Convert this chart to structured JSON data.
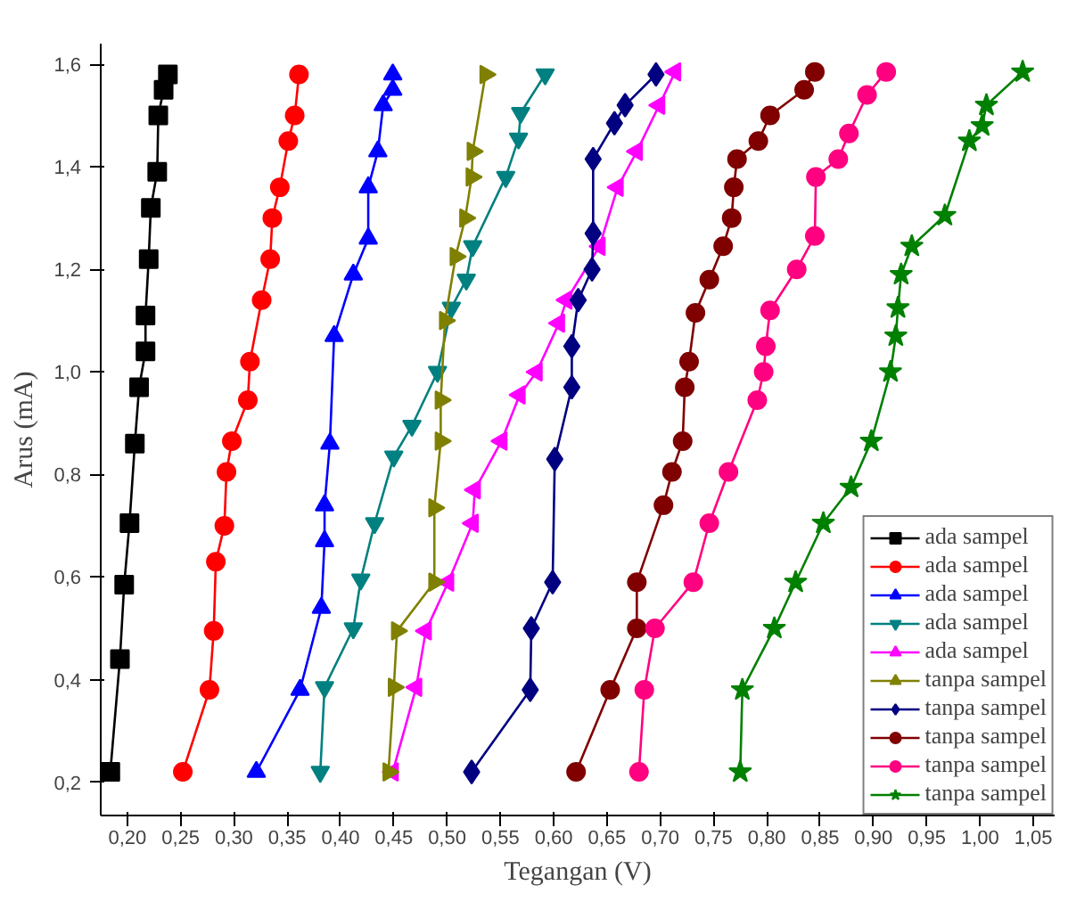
{
  "chart_data": {
    "type": "line",
    "xlabel": "Tegangan (V)",
    "ylabel": "Arus (mA)",
    "xlim": [
      0.175,
      1.07
    ],
    "ylim": [
      0.135,
      1.64
    ],
    "xticks": [
      {
        "value": 0.2,
        "label": "0,20"
      },
      {
        "value": 0.25,
        "label": "0,25"
      },
      {
        "value": 0.3,
        "label": "0,30"
      },
      {
        "value": 0.35,
        "label": "0,35"
      },
      {
        "value": 0.4,
        "label": "0,40"
      },
      {
        "value": 0.45,
        "label": "0,45"
      },
      {
        "value": 0.5,
        "label": "0,50"
      },
      {
        "value": 0.55,
        "label": "0,55"
      },
      {
        "value": 0.6,
        "label": "0,60"
      },
      {
        "value": 0.65,
        "label": "0,65"
      },
      {
        "value": 0.7,
        "label": "0,70"
      },
      {
        "value": 0.75,
        "label": "0,75"
      },
      {
        "value": 0.8,
        "label": "0,80"
      },
      {
        "value": 0.85,
        "label": "0,85"
      },
      {
        "value": 0.9,
        "label": "0,90"
      },
      {
        "value": 0.95,
        "label": "0,95"
      },
      {
        "value": 1.0,
        "label": "1,00"
      },
      {
        "value": 1.05,
        "label": "1,05"
      }
    ],
    "yticks": [
      {
        "value": 0.2,
        "label": "0,2"
      },
      {
        "value": 0.4,
        "label": "0,4"
      },
      {
        "value": 0.6,
        "label": "0,6"
      },
      {
        "value": 0.8,
        "label": "0,8"
      },
      {
        "value": 1.0,
        "label": "1,0"
      },
      {
        "value": 1.2,
        "label": "1,2"
      },
      {
        "value": 1.4,
        "label": "1,4"
      },
      {
        "value": 1.6,
        "label": "1,6"
      }
    ],
    "grid": false,
    "legend": "bottom right",
    "line_style": "solid",
    "series": [
      {
        "name": "ada sampel",
        "color": "#000000",
        "marker": "square",
        "x": [
          0.184,
          0.193,
          0.197,
          0.202,
          0.207,
          0.211,
          0.217,
          0.217,
          0.22,
          0.222,
          0.228,
          0.229,
          0.234,
          0.238
        ],
        "values": [
          0.22,
          0.44,
          0.585,
          0.705,
          0.86,
          0.97,
          1.04,
          1.11,
          1.22,
          1.32,
          1.39,
          1.5,
          1.55,
          1.58
        ]
      },
      {
        "name": "ada sampel",
        "color": "#ff0000",
        "marker": "circle",
        "x": [
          0.252,
          0.277,
          0.281,
          0.283,
          0.291,
          0.293,
          0.298,
          0.313,
          0.315,
          0.326,
          0.334,
          0.336,
          0.343,
          0.351,
          0.357,
          0.361
        ],
        "values": [
          0.22,
          0.38,
          0.495,
          0.63,
          0.7,
          0.805,
          0.865,
          0.945,
          1.02,
          1.14,
          1.22,
          1.3,
          1.36,
          1.45,
          1.5,
          1.58
        ]
      },
      {
        "name": "ada sampel",
        "color": "#0000ff",
        "marker": "triangle",
        "x": [
          0.321,
          0.362,
          0.382,
          0.385,
          0.385,
          0.39,
          0.394,
          0.412,
          0.426,
          0.426,
          0.435,
          0.44,
          0.449,
          0.449
        ],
        "values": [
          0.22,
          0.38,
          0.54,
          0.67,
          0.74,
          0.86,
          1.07,
          1.19,
          1.26,
          1.36,
          1.43,
          1.52,
          1.55,
          1.58
        ]
      },
      {
        "name": "ada sampel",
        "color": "#008080",
        "marker": "triangle-down",
        "x": [
          0.381,
          0.385,
          0.412,
          0.419,
          0.432,
          0.45,
          0.467,
          0.491,
          0.504,
          0.518,
          0.524,
          0.555,
          0.567,
          0.569,
          0.592
        ],
        "values": [
          0.22,
          0.385,
          0.5,
          0.595,
          0.705,
          0.835,
          0.895,
          1.0,
          1.125,
          1.18,
          1.245,
          1.38,
          1.455,
          1.505,
          1.58
        ]
      },
      {
        "name": "ada sampel",
        "color": "#ff00ff",
        "marker": "triangle-left",
        "x": [
          0.449,
          0.471,
          0.48,
          0.501,
          0.524,
          0.526,
          0.551,
          0.568,
          0.584,
          0.605,
          0.612,
          0.643,
          0.66,
          0.678,
          0.699,
          0.714
        ],
        "values": [
          0.22,
          0.385,
          0.495,
          0.59,
          0.705,
          0.77,
          0.865,
          0.955,
          1.0,
          1.095,
          1.14,
          1.245,
          1.36,
          1.43,
          1.52,
          1.585
        ]
      },
      {
        "name": "tanpa sampel",
        "color": "#808000",
        "marker": "triangle-right",
        "x": [
          0.445,
          0.45,
          0.453,
          0.488,
          0.488,
          0.494,
          0.494,
          0.498,
          0.508,
          0.517,
          0.523,
          0.524,
          0.536
        ],
        "values": [
          0.22,
          0.385,
          0.495,
          0.59,
          0.735,
          0.865,
          0.945,
          1.1,
          1.225,
          1.3,
          1.38,
          1.43,
          1.58
        ]
      },
      {
        "name": "tanpa sampel",
        "color": "#000080",
        "marker": "diamond",
        "x": [
          0.523,
          0.578,
          0.579,
          0.599,
          0.601,
          0.617,
          0.617,
          0.623,
          0.636,
          0.637,
          0.637,
          0.657,
          0.667,
          0.696
        ],
        "values": [
          0.22,
          0.38,
          0.5,
          0.59,
          0.83,
          0.97,
          1.05,
          1.14,
          1.2,
          1.27,
          1.415,
          1.485,
          1.52,
          1.58
        ]
      },
      {
        "name": "tanpa sampel",
        "color": "#800000",
        "marker": "circle",
        "x": [
          0.621,
          0.653,
          0.678,
          0.678,
          0.703,
          0.711,
          0.721,
          0.723,
          0.727,
          0.733,
          0.746,
          0.759,
          0.767,
          0.769,
          0.772,
          0.792,
          0.803,
          0.835,
          0.845
        ],
        "values": [
          0.22,
          0.38,
          0.5,
          0.59,
          0.74,
          0.805,
          0.865,
          0.97,
          1.02,
          1.115,
          1.18,
          1.245,
          1.3,
          1.36,
          1.415,
          1.45,
          1.5,
          1.55,
          1.585
        ]
      },
      {
        "name": "tanpa sampel",
        "color": "#ff0080",
        "marker": "circle",
        "x": [
          0.68,
          0.685,
          0.695,
          0.731,
          0.746,
          0.764,
          0.791,
          0.797,
          0.799,
          0.803,
          0.828,
          0.845,
          0.846,
          0.867,
          0.877,
          0.894,
          0.912
        ],
        "values": [
          0.22,
          0.38,
          0.5,
          0.59,
          0.705,
          0.805,
          0.945,
          1.0,
          1.05,
          1.12,
          1.2,
          1.265,
          1.38,
          1.415,
          1.465,
          1.54,
          1.585
        ]
      },
      {
        "name": "tanpa sampel",
        "color": "#008000",
        "marker": "star",
        "x": [
          0.775,
          0.777,
          0.807,
          0.827,
          0.853,
          0.879,
          0.898,
          0.916,
          0.921,
          0.923,
          0.926,
          0.936,
          0.967,
          0.99,
          1.002,
          1.006,
          1.04
        ],
        "values": [
          0.22,
          0.38,
          0.5,
          0.59,
          0.705,
          0.775,
          0.865,
          1.0,
          1.07,
          1.125,
          1.19,
          1.245,
          1.305,
          1.45,
          1.48,
          1.52,
          1.585
        ]
      }
    ]
  }
}
